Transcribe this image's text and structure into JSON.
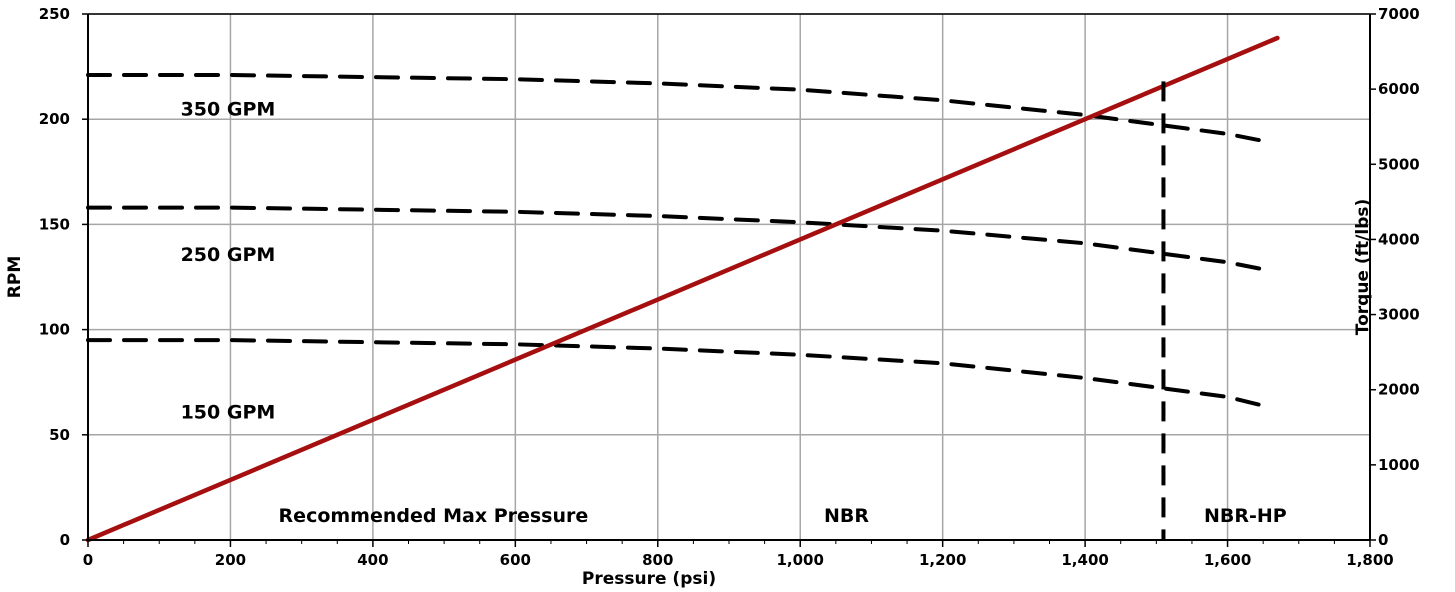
{
  "chart_data": {
    "type": "line",
    "title": "",
    "xlabel": "Pressure (psi)",
    "ylabel": "RPM",
    "y2label": "Torque (ft/lbs)",
    "xlim": [
      0,
      1800
    ],
    "ylim": [
      0,
      250
    ],
    "y2lim": [
      0,
      7000
    ],
    "xticks": [
      0,
      200,
      400,
      600,
      800,
      1000,
      1200,
      1400,
      1600,
      1800
    ],
    "xtick_labels": [
      "0",
      "200",
      "400",
      "600",
      "800",
      "1,000",
      "1,200",
      "1,400",
      "1,600",
      "1,800"
    ],
    "yticks": [
      0,
      50,
      100,
      150,
      200,
      250
    ],
    "ytick_labels": [
      "0",
      "50",
      "100",
      "150",
      "200",
      "250"
    ],
    "y2ticks": [
      0,
      1000,
      2000,
      3000,
      4000,
      5000,
      6000,
      7000
    ],
    "y2tick_labels": [
      "0",
      "1000",
      "2000",
      "3000",
      "4000",
      "5000",
      "6000",
      "7000"
    ],
    "grid": true,
    "series": [
      {
        "name": "350 GPM",
        "axis": "left",
        "style": "dashed",
        "color": "#000000",
        "x": [
          0,
          200,
          400,
          600,
          800,
          1000,
          1200,
          1400,
          1600,
          1660
        ],
        "y": [
          221,
          221,
          220,
          219,
          217,
          214,
          209,
          202,
          193,
          189
        ]
      },
      {
        "name": "250 GPM",
        "axis": "left",
        "style": "dashed",
        "color": "#000000",
        "x": [
          0,
          200,
          400,
          600,
          800,
          1000,
          1200,
          1400,
          1600,
          1660
        ],
        "y": [
          158,
          158,
          157,
          156,
          154,
          151,
          147,
          141,
          132,
          128
        ]
      },
      {
        "name": "150 GPM",
        "axis": "left",
        "style": "dashed",
        "color": "#000000",
        "x": [
          0,
          200,
          400,
          600,
          800,
          1000,
          1200,
          1400,
          1600,
          1660
        ],
        "y": [
          95,
          95,
          94,
          93,
          91,
          88,
          84,
          77,
          68,
          63
        ]
      },
      {
        "name": "Torque",
        "axis": "right",
        "style": "solid",
        "color": "#a50f0f",
        "x": [
          0,
          1670
        ],
        "y": [
          0,
          6680
        ]
      }
    ],
    "vertical_marker": {
      "x": 1510,
      "y_from": 0,
      "y_to": 218,
      "style": "dashed",
      "color": "#000000"
    },
    "annotations": [
      {
        "text": "350 GPM",
        "x": 130,
        "y": 205
      },
      {
        "text": "250 GPM",
        "x": 130,
        "y": 136
      },
      {
        "text": "150 GPM",
        "x": 130,
        "y": 61
      },
      {
        "text": "Recommended Max Pressure",
        "x": 485,
        "y": 12
      },
      {
        "text": "NBR",
        "x": 1065,
        "y": 12
      },
      {
        "text": "NBR-HP",
        "x": 1625,
        "y": 12
      }
    ]
  }
}
